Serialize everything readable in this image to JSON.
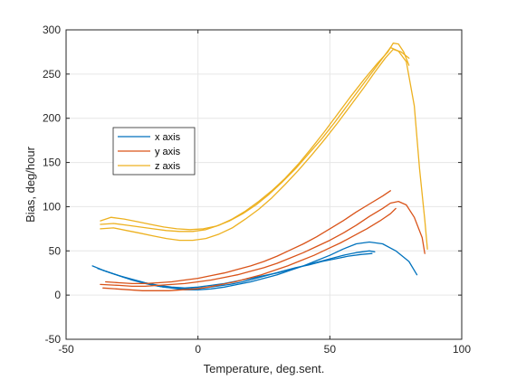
{
  "chart_data": {
    "type": "line",
    "title": "",
    "xlabel": "Temperature, deg.sent.",
    "ylabel": "Bias, deg/hour",
    "xlim": [
      -50,
      100
    ],
    "ylim": [
      -50,
      300
    ],
    "xticks": [
      -50,
      0,
      50,
      100
    ],
    "yticks": [
      -50,
      0,
      50,
      100,
      150,
      200,
      250,
      300
    ],
    "grid": true,
    "legend_position": "upper-left inside",
    "series": [
      {
        "name": "x axis",
        "color": "#0072BD",
        "curves": [
          [
            [
              -40,
              33
            ],
            [
              -35,
              27
            ],
            [
              -30,
              22
            ],
            [
              -25,
              17
            ],
            [
              -20,
              13
            ],
            [
              -15,
              10
            ],
            [
              -10,
              8
            ],
            [
              -5,
              6
            ],
            [
              0,
              6
            ],
            [
              5,
              7
            ],
            [
              10,
              9
            ],
            [
              15,
              12
            ],
            [
              20,
              15
            ],
            [
              25,
              19
            ],
            [
              30,
              23
            ],
            [
              35,
              28
            ],
            [
              40,
              33
            ],
            [
              45,
              39
            ],
            [
              50,
              45
            ],
            [
              55,
              52
            ],
            [
              60,
              58
            ],
            [
              65,
              60
            ],
            [
              70,
              58
            ],
            [
              75,
              50
            ],
            [
              80,
              38
            ],
            [
              83,
              23
            ]
          ],
          [
            [
              -38,
              30
            ],
            [
              -33,
              25
            ],
            [
              -28,
              20
            ],
            [
              -23,
              16
            ],
            [
              -18,
              12
            ],
            [
              -13,
              9
            ],
            [
              -8,
              8
            ],
            [
              -3,
              7
            ],
            [
              2,
              8
            ],
            [
              7,
              10
            ],
            [
              12,
              12
            ],
            [
              17,
              15
            ],
            [
              22,
              19
            ],
            [
              27,
              23
            ],
            [
              32,
              27
            ],
            [
              37,
              31
            ],
            [
              42,
              34
            ],
            [
              47,
              38
            ],
            [
              52,
              41
            ],
            [
              57,
              44
            ],
            [
              62,
              46
            ],
            [
              66,
              47
            ]
          ],
          [
            [
              -36,
              28
            ],
            [
              -30,
              22
            ],
            [
              -25,
              18
            ],
            [
              -20,
              14
            ],
            [
              -15,
              11
            ],
            [
              -10,
              9
            ],
            [
              -5,
              8
            ],
            [
              0,
              9
            ],
            [
              5,
              11
            ],
            [
              10,
              13
            ],
            [
              15,
              16
            ],
            [
              20,
              19
            ],
            [
              25,
              22
            ],
            [
              30,
              25
            ],
            [
              35,
              29
            ],
            [
              40,
              33
            ],
            [
              45,
              37
            ],
            [
              50,
              41
            ],
            [
              55,
              45
            ],
            [
              60,
              48
            ],
            [
              65,
              50
            ],
            [
              67,
              49
            ]
          ]
        ]
      },
      {
        "name": "y axis",
        "color": "#D95319",
        "curves": [
          [
            [
              -37,
              12
            ],
            [
              -30,
              11
            ],
            [
              -25,
              10
            ],
            [
              -20,
              10
            ],
            [
              -15,
              11
            ],
            [
              -10,
              12
            ],
            [
              -5,
              13
            ],
            [
              0,
              15
            ],
            [
              5,
              17
            ],
            [
              10,
              20
            ],
            [
              15,
              23
            ],
            [
              20,
              27
            ],
            [
              25,
              31
            ],
            [
              30,
              36
            ],
            [
              35,
              42
            ],
            [
              40,
              48
            ],
            [
              45,
              55
            ],
            [
              50,
              62
            ],
            [
              55,
              70
            ],
            [
              60,
              79
            ],
            [
              65,
              89
            ],
            [
              70,
              98
            ],
            [
              73,
              104
            ],
            [
              76,
              106
            ],
            [
              79,
              102
            ],
            [
              82,
              88
            ],
            [
              85,
              65
            ],
            [
              86,
              47
            ]
          ],
          [
            [
              -35,
              15
            ],
            [
              -30,
              14
            ],
            [
              -25,
              13
            ],
            [
              -20,
              13
            ],
            [
              -15,
              14
            ],
            [
              -10,
              15
            ],
            [
              -5,
              17
            ],
            [
              0,
              19
            ],
            [
              5,
              22
            ],
            [
              10,
              25
            ],
            [
              15,
              29
            ],
            [
              20,
              33
            ],
            [
              25,
              38
            ],
            [
              30,
              44
            ],
            [
              35,
              51
            ],
            [
              40,
              58
            ],
            [
              45,
              66
            ],
            [
              50,
              75
            ],
            [
              55,
              84
            ],
            [
              60,
              94
            ],
            [
              65,
              103
            ],
            [
              70,
              112
            ],
            [
              73,
              118
            ]
          ],
          [
            [
              -36,
              8
            ],
            [
              -31,
              7
            ],
            [
              -26,
              6
            ],
            [
              -21,
              5
            ],
            [
              -16,
              5
            ],
            [
              -11,
              5
            ],
            [
              -6,
              6
            ],
            [
              -1,
              7
            ],
            [
              4,
              9
            ],
            [
              9,
              12
            ],
            [
              14,
              15
            ],
            [
              19,
              19
            ],
            [
              24,
              23
            ],
            [
              29,
              28
            ],
            [
              34,
              33
            ],
            [
              39,
              39
            ],
            [
              44,
              45
            ],
            [
              49,
              52
            ],
            [
              54,
              59
            ],
            [
              59,
              67
            ],
            [
              64,
              75
            ],
            [
              69,
              84
            ],
            [
              73,
              92
            ],
            [
              75,
              98
            ]
          ]
        ]
      },
      {
        "name": "z axis",
        "color": "#EDB120",
        "curves": [
          [
            [
              -37,
              84
            ],
            [
              -33,
              88
            ],
            [
              -28,
              86
            ],
            [
              -23,
              83
            ],
            [
              -18,
              80
            ],
            [
              -13,
              77
            ],
            [
              -8,
              75
            ],
            [
              -3,
              74
            ],
            [
              2,
              75
            ],
            [
              7,
              78
            ],
            [
              12,
              84
            ],
            [
              17,
              92
            ],
            [
              22,
              102
            ],
            [
              27,
              114
            ],
            [
              32,
              128
            ],
            [
              37,
              143
            ],
            [
              42,
              160
            ],
            [
              47,
              177
            ],
            [
              52,
              196
            ],
            [
              57,
              216
            ],
            [
              62,
              236
            ],
            [
              67,
              256
            ],
            [
              71,
              272
            ],
            [
              73,
              280
            ],
            [
              76,
              276
            ],
            [
              79,
              264
            ],
            [
              82,
              214
            ],
            [
              84,
              143
            ],
            [
              86,
              85
            ],
            [
              87,
              52
            ]
          ],
          [
            [
              -37,
              80
            ],
            [
              -32,
              81
            ],
            [
              -27,
              79
            ],
            [
              -22,
              77
            ],
            [
              -17,
              75
            ],
            [
              -12,
              73
            ],
            [
              -7,
              72
            ],
            [
              -2,
              72
            ],
            [
              3,
              74
            ],
            [
              8,
              79
            ],
            [
              13,
              86
            ],
            [
              18,
              95
            ],
            [
              23,
              106
            ],
            [
              28,
              118
            ],
            [
              33,
              132
            ],
            [
              38,
              148
            ],
            [
              43,
              166
            ],
            [
              48,
              185
            ],
            [
              53,
              205
            ],
            [
              58,
              225
            ],
            [
              63,
              244
            ],
            [
              68,
              262
            ],
            [
              72,
              275
            ],
            [
              74,
              285
            ],
            [
              76,
              284
            ],
            [
              78,
              275
            ],
            [
              80,
              260
            ]
          ],
          [
            [
              -37,
              75
            ],
            [
              -32,
              76
            ],
            [
              -27,
              73
            ],
            [
              -22,
              70
            ],
            [
              -17,
              67
            ],
            [
              -12,
              64
            ],
            [
              -7,
              62
            ],
            [
              -2,
              62
            ],
            [
              3,
              64
            ],
            [
              8,
              69
            ],
            [
              13,
              76
            ],
            [
              18,
              86
            ],
            [
              23,
              97
            ],
            [
              28,
              110
            ],
            [
              33,
              125
            ],
            [
              38,
              141
            ],
            [
              43,
              158
            ],
            [
              48,
              176
            ],
            [
              53,
              195
            ],
            [
              58,
              215
            ],
            [
              63,
              235
            ],
            [
              67,
              252
            ],
            [
              71,
              268
            ],
            [
              74,
              278
            ],
            [
              77,
              275
            ],
            [
              80,
              268
            ]
          ]
        ]
      }
    ]
  }
}
